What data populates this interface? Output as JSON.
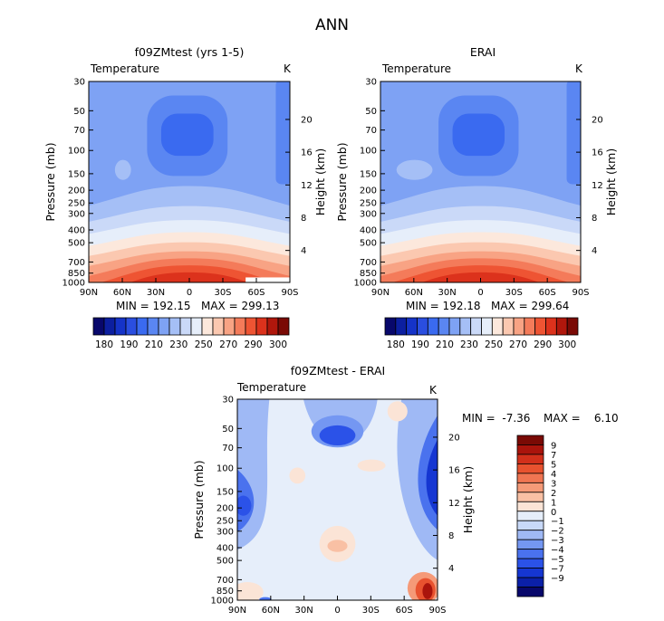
{
  "page_title": "ANN",
  "panels": [
    {
      "title": "f09ZMtest (yrs 1-5)",
      "field_label": "Temperature",
      "units_label": "K",
      "stats": "MIN = 192.15   MAX = 299.13"
    },
    {
      "title": "ERAI",
      "field_label": "Temperature",
      "units_label": "K",
      "stats": "MIN = 192.18   MAX = 299.64"
    },
    {
      "title": "f09ZMtest - ERAI",
      "field_label": "Temperature",
      "units_label": "K",
      "stats_min": "MIN =  -7.36",
      "stats_max": "MAX =    6.10"
    }
  ],
  "colors": {
    "temperature_bar": [
      "#08086b",
      "#0c1fa0",
      "#1533c8",
      "#2a4ee0",
      "#3a6af0",
      "#5a86f2",
      "#7ea2f4",
      "#a5bff6",
      "#cad9f8",
      "#e6eefa",
      "#fce8dc",
      "#fbc8b0",
      "#f8a384",
      "#f47b5a",
      "#ee5433",
      "#dc321c",
      "#b0170c",
      "#7a0a05"
    ],
    "diff_bar": [
      "#08086b",
      "#0b20a8",
      "#1536d2",
      "#2b52e8",
      "#4a72ee",
      "#7497f2",
      "#9fb9f5",
      "#c8d9f8",
      "#e6eefa",
      "#fbe4d6",
      "#f9c0a4",
      "#f59a78",
      "#f07552",
      "#e8522f",
      "#d2301b",
      "#aa140c",
      "#7a0a05"
    ]
  },
  "chart_data": [
    {
      "type": "heatmap",
      "subtype": "filled-contour",
      "title": "f09ZMtest (yrs 1-5)",
      "field": "Temperature",
      "units": "K",
      "x": [
        "90N",
        "60N",
        "30N",
        "0",
        "30S",
        "60S",
        "90S"
      ],
      "y_pressure_mb": [
        30,
        50,
        70,
        100,
        150,
        200,
        250,
        300,
        400,
        500,
        700,
        850,
        1000
      ],
      "y_height_km": [
        4,
        8,
        12,
        16,
        20
      ],
      "xlabel": "",
      "ylabel": "Pressure (mb)",
      "y2label": "Height (km)",
      "min": 192.15,
      "max": 299.13,
      "colorbar_ticks": [
        180,
        190,
        210,
        230,
        250,
        270,
        290,
        300
      ]
    },
    {
      "type": "heatmap",
      "subtype": "filled-contour",
      "title": "ERAI",
      "field": "Temperature",
      "units": "K",
      "x": [
        "90N",
        "60N",
        "30N",
        "0",
        "30S",
        "60S",
        "90S"
      ],
      "y_pressure_mb": [
        30,
        50,
        70,
        100,
        150,
        200,
        250,
        300,
        400,
        500,
        700,
        850,
        1000
      ],
      "y_height_km": [
        4,
        8,
        12,
        16,
        20
      ],
      "xlabel": "",
      "ylabel": "Pressure (mb)",
      "y2label": "Height (km)",
      "min": 192.18,
      "max": 299.64,
      "colorbar_ticks": [
        180,
        190,
        210,
        230,
        250,
        270,
        290,
        300
      ]
    },
    {
      "type": "heatmap",
      "subtype": "filled-contour",
      "title": "f09ZMtest - ERAI",
      "field": "Temperature",
      "units": "K",
      "x": [
        "90N",
        "60N",
        "30N",
        "0",
        "30S",
        "60S",
        "90S"
      ],
      "y_pressure_mb": [
        30,
        50,
        70,
        100,
        150,
        200,
        250,
        300,
        400,
        500,
        700,
        850,
        1000
      ],
      "y_height_km": [
        4,
        8,
        12,
        16,
        20
      ],
      "xlabel": "",
      "ylabel": "Pressure (mb)",
      "y2label": "Height (km)",
      "min": -7.36,
      "max": 6.1,
      "colorbar_ticks": [
        9,
        7,
        5,
        4,
        3,
        2,
        1,
        0,
        -1,
        -2,
        -3,
        -4,
        -5,
        -7,
        -9
      ]
    }
  ]
}
